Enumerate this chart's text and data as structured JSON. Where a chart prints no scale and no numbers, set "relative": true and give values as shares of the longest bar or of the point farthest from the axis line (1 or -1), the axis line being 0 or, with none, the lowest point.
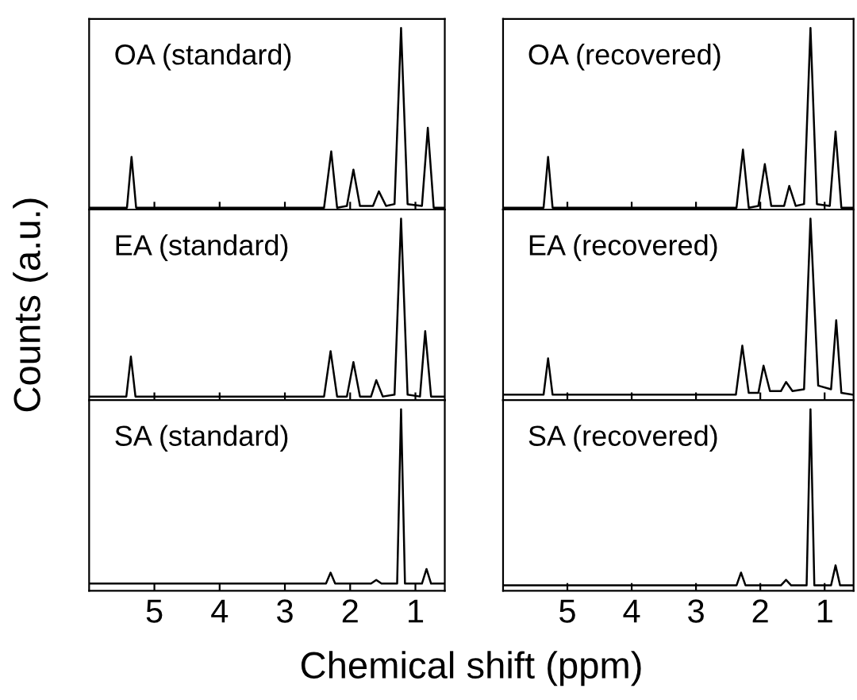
{
  "chart_data": [
    {
      "type": "line",
      "relative": true,
      "annotations": [
        "OA (standard)"
      ],
      "xlim": [
        6.0,
        0.55
      ],
      "xticks": [
        5,
        4,
        3,
        2,
        1
      ],
      "tick_labels": false,
      "grid": false,
      "legend": false,
      "series": [
        {
          "color": "#000000",
          "x": [
            6.0,
            5.42,
            5.35,
            5.28,
            2.4,
            2.29,
            2.2,
            2.05,
            1.95,
            1.85,
            1.65,
            1.56,
            1.45,
            1.32,
            1.22,
            1.12,
            0.9,
            0.81,
            0.72,
            0.55
          ],
          "values": [
            0.01,
            0.01,
            0.29,
            0.01,
            0.01,
            0.32,
            0.01,
            0.02,
            0.22,
            0.02,
            0.02,
            0.1,
            0.02,
            0.03,
            1.0,
            0.03,
            0.02,
            0.45,
            0.01,
            0.01
          ]
        }
      ]
    },
    {
      "type": "line",
      "relative": true,
      "annotations": [
        "OA (recovered)"
      ],
      "xlim": [
        6.0,
        0.55
      ],
      "xticks": [
        5,
        4,
        3,
        2,
        1
      ],
      "tick_labels": false,
      "grid": false,
      "legend": false,
      "series": [
        {
          "color": "#000000",
          "x": [
            6.0,
            5.37,
            5.3,
            5.23,
            2.37,
            2.27,
            2.18,
            2.03,
            1.93,
            1.83,
            1.63,
            1.55,
            1.45,
            1.32,
            1.22,
            1.12,
            0.92,
            0.83,
            0.74,
            0.55
          ],
          "values": [
            0.01,
            0.01,
            0.29,
            0.01,
            0.01,
            0.33,
            0.01,
            0.02,
            0.25,
            0.02,
            0.02,
            0.13,
            0.02,
            0.03,
            1.0,
            0.03,
            0.02,
            0.43,
            0.01,
            0.01
          ]
        }
      ]
    },
    {
      "type": "line",
      "relative": true,
      "annotations": [
        "EA (standard)"
      ],
      "ylabel": "Counts (a.u.)",
      "xlim": [
        6.0,
        0.55
      ],
      "xticks": [
        5,
        4,
        3,
        2,
        1
      ],
      "tick_labels": false,
      "grid": false,
      "legend": false,
      "series": [
        {
          "color": "#000000",
          "x": [
            6.0,
            5.43,
            5.36,
            5.29,
            2.4,
            2.3,
            2.2,
            2.05,
            1.95,
            1.85,
            1.68,
            1.6,
            1.5,
            1.32,
            1.22,
            1.12,
            0.93,
            0.85,
            0.76,
            0.55
          ],
          "values": [
            0.02,
            0.02,
            0.24,
            0.02,
            0.02,
            0.27,
            0.02,
            0.02,
            0.21,
            0.02,
            0.02,
            0.11,
            0.02,
            0.03,
            1.0,
            0.03,
            0.02,
            0.38,
            0.02,
            0.02
          ]
        }
      ]
    },
    {
      "type": "line",
      "relative": true,
      "annotations": [
        "EA (recovered)"
      ],
      "xlim": [
        6.0,
        0.55
      ],
      "xticks": [
        5,
        4,
        3,
        2,
        1
      ],
      "tick_labels": false,
      "grid": false,
      "legend": false,
      "series": [
        {
          "color": "#000000",
          "x": [
            6.0,
            5.37,
            5.3,
            5.23,
            2.38,
            2.28,
            2.18,
            2.03,
            1.95,
            1.85,
            1.68,
            1.6,
            1.5,
            1.32,
            1.22,
            1.1,
            0.9,
            0.82,
            0.74,
            0.55
          ],
          "values": [
            0.03,
            0.03,
            0.23,
            0.03,
            0.03,
            0.3,
            0.04,
            0.04,
            0.19,
            0.05,
            0.05,
            0.1,
            0.05,
            0.06,
            1.0,
            0.08,
            0.06,
            0.44,
            0.04,
            0.03
          ]
        }
      ]
    },
    {
      "type": "line",
      "relative": true,
      "annotations": [
        "SA (standard)"
      ],
      "xlabel": "Chemical shift (ppm)",
      "xlim": [
        6.0,
        0.55
      ],
      "xticks": [
        5,
        4,
        3,
        2,
        1
      ],
      "tick_labels": "x",
      "grid": false,
      "legend": false,
      "series": [
        {
          "color": "#000000",
          "x": [
            6.0,
            2.37,
            2.3,
            2.23,
            1.68,
            1.6,
            1.52,
            1.28,
            1.22,
            1.16,
            0.9,
            0.83,
            0.76,
            0.55
          ],
          "values": [
            0.04,
            0.04,
            0.1,
            0.04,
            0.04,
            0.06,
            0.04,
            0.04,
            1.0,
            0.04,
            0.04,
            0.12,
            0.04,
            0.04
          ]
        }
      ]
    },
    {
      "type": "line",
      "relative": true,
      "annotations": [
        "SA (recovered)"
      ],
      "xlim": [
        6.0,
        0.55
      ],
      "xticks": [
        5,
        4,
        3,
        2,
        1
      ],
      "tick_labels": "x",
      "grid": false,
      "legend": false,
      "series": [
        {
          "color": "#000000",
          "x": [
            6.0,
            2.37,
            2.3,
            2.23,
            1.68,
            1.6,
            1.52,
            1.28,
            1.22,
            1.16,
            0.9,
            0.83,
            0.76,
            0.55
          ],
          "values": [
            0.03,
            0.03,
            0.1,
            0.03,
            0.03,
            0.06,
            0.03,
            0.03,
            1.0,
            0.03,
            0.03,
            0.14,
            0.03,
            0.03
          ]
        }
      ]
    }
  ]
}
